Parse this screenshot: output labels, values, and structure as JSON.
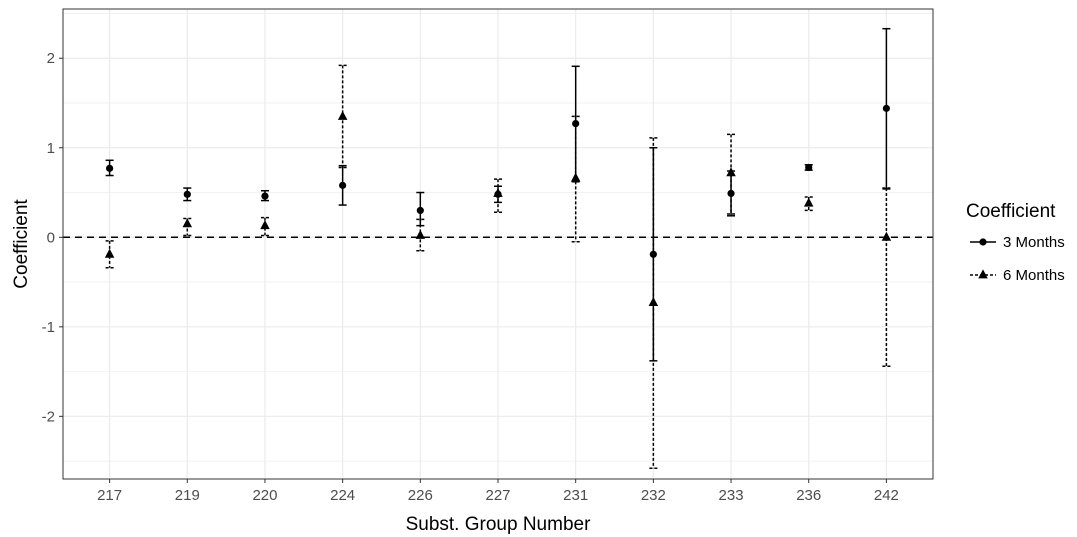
{
  "chart_data": {
    "type": "scatter",
    "xlabel": "Subst. Group Number",
    "ylabel": "Coefficient",
    "categories": [
      "217",
      "219",
      "220",
      "224",
      "226",
      "227",
      "231",
      "232",
      "233",
      "236",
      "242"
    ],
    "ylim": [
      -2.7,
      2.55
    ],
    "yticks": [
      "-2",
      "-1",
      "0",
      "1",
      "2"
    ],
    "reference_line": {
      "y": 0,
      "style": "dashed"
    },
    "grid": true,
    "legend": {
      "title": "Coefficient",
      "position": "right"
    },
    "series": [
      {
        "name": "3 Months",
        "marker": "circle",
        "line_style": "solid",
        "values": [
          0.77,
          0.48,
          0.46,
          0.58,
          0.3,
          0.48,
          1.27,
          -0.19,
          0.49,
          0.78,
          1.44
        ],
        "lower": [
          0.69,
          0.41,
          0.41,
          0.36,
          0.13,
          0.39,
          0.62,
          -1.38,
          0.24,
          0.75,
          0.54
        ],
        "upper": [
          0.86,
          0.55,
          0.52,
          0.8,
          0.5,
          0.57,
          1.91,
          1.0,
          0.74,
          0.81,
          2.33
        ]
      },
      {
        "name": "6 Months",
        "marker": "triangle",
        "line_style": "dotted",
        "values": [
          -0.19,
          0.15,
          0.13,
          1.35,
          0.02,
          0.49,
          0.66,
          -0.73,
          0.72,
          0.38,
          0.0
        ],
        "lower": [
          -0.34,
          0.02,
          0.02,
          0.78,
          -0.15,
          0.28,
          -0.05,
          -2.58,
          0.26,
          0.3,
          -1.44
        ],
        "upper": [
          -0.04,
          0.21,
          0.22,
          1.92,
          0.2,
          0.65,
          1.35,
          1.11,
          1.15,
          0.45,
          0.55
        ]
      }
    ]
  }
}
